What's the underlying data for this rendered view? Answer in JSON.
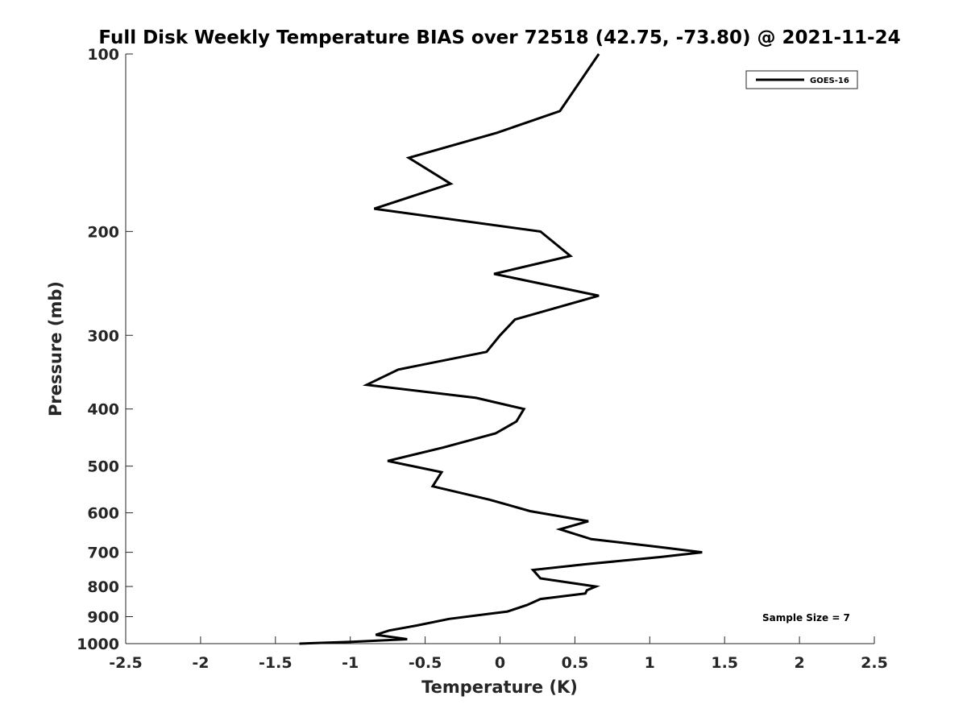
{
  "chart_data": {
    "type": "line",
    "title": "Full Disk Weekly Temperature BIAS over 72518 (42.75, -73.80) @ 2021-11-24",
    "xlabel": "Temperature (K)",
    "ylabel": "Pressure (mb)",
    "xlim": [
      -2.5,
      2.5
    ],
    "ylim": [
      1000,
      100
    ],
    "y_scale": "log",
    "y_reversed": true,
    "grid": false,
    "legend_position": "top-right",
    "x_ticks": [
      "-2.5",
      "-2",
      "-1.5",
      "-1",
      "-0.5",
      "0",
      "0.5",
      "1",
      "1.5",
      "2",
      "2.5"
    ],
    "y_ticks": [
      "100",
      "200",
      "300",
      "400",
      "500",
      "600",
      "700",
      "800",
      "900",
      "1000"
    ],
    "annotation": "Sample Size = 7",
    "series": [
      {
        "name": "GOES-16",
        "color": "#000000",
        "points": [
          {
            "t": 0.66,
            "p": 100
          },
          {
            "t": 0.4,
            "p": 125
          },
          {
            "t": -0.02,
            "p": 136
          },
          {
            "t": -0.61,
            "p": 150
          },
          {
            "t": -0.33,
            "p": 166
          },
          {
            "t": -0.84,
            "p": 183
          },
          {
            "t": 0.27,
            "p": 200
          },
          {
            "t": 0.47,
            "p": 220
          },
          {
            "t": -0.04,
            "p": 236
          },
          {
            "t": 0.66,
            "p": 257
          },
          {
            "t": 0.1,
            "p": 282
          },
          {
            "t": 0.0,
            "p": 300
          },
          {
            "t": -0.09,
            "p": 320
          },
          {
            "t": -0.68,
            "p": 343
          },
          {
            "t": -0.89,
            "p": 364
          },
          {
            "t": -0.16,
            "p": 383
          },
          {
            "t": 0.16,
            "p": 400
          },
          {
            "t": 0.11,
            "p": 420
          },
          {
            "t": -0.03,
            "p": 440
          },
          {
            "t": -0.38,
            "p": 465
          },
          {
            "t": -0.75,
            "p": 490
          },
          {
            "t": -0.39,
            "p": 512
          },
          {
            "t": -0.45,
            "p": 541
          },
          {
            "t": -0.07,
            "p": 570
          },
          {
            "t": 0.2,
            "p": 596
          },
          {
            "t": 0.59,
            "p": 620
          },
          {
            "t": 0.4,
            "p": 640
          },
          {
            "t": 0.61,
            "p": 665
          },
          {
            "t": 1.05,
            "p": 685
          },
          {
            "t": 1.35,
            "p": 700
          },
          {
            "t": 1.07,
            "p": 713
          },
          {
            "t": 0.58,
            "p": 733
          },
          {
            "t": 0.22,
            "p": 750
          },
          {
            "t": 0.27,
            "p": 775
          },
          {
            "t": 0.64,
            "p": 800
          },
          {
            "t": 0.58,
            "p": 812
          },
          {
            "t": 0.57,
            "p": 822
          },
          {
            "t": 0.27,
            "p": 840
          },
          {
            "t": 0.18,
            "p": 860
          },
          {
            "t": 0.05,
            "p": 882
          },
          {
            "t": -0.34,
            "p": 908
          },
          {
            "t": -0.56,
            "p": 932
          },
          {
            "t": -0.74,
            "p": 950
          },
          {
            "t": -0.83,
            "p": 966
          },
          {
            "t": -0.62,
            "p": 983
          },
          {
            "t": -0.99,
            "p": 993
          },
          {
            "t": -1.34,
            "p": 1000
          }
        ]
      }
    ]
  }
}
